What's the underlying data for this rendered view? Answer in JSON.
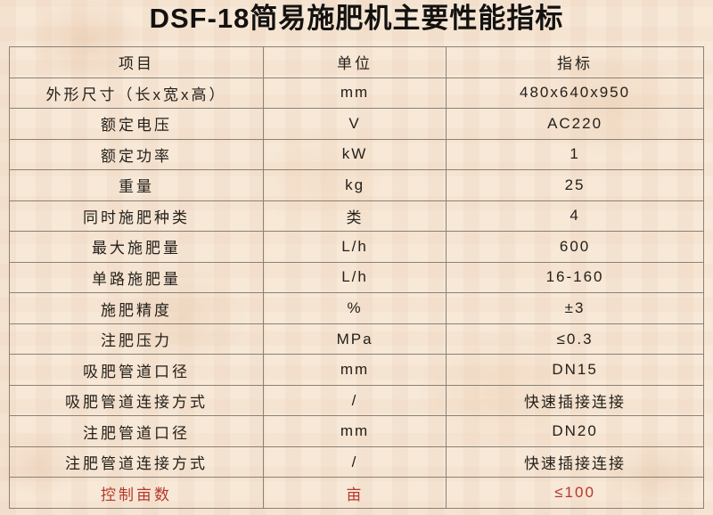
{
  "page": {
    "title": "DSF-18简易施肥机主要性能指标"
  },
  "colors": {
    "background": "#f7e8d7",
    "table_border": "#8a8174",
    "text": "#24201b",
    "highlight_text": "#b5372c"
  },
  "table": {
    "headers": [
      "项目",
      "单位",
      "指标"
    ],
    "rows": [
      {
        "item": "外形尺寸（长x宽x高）",
        "unit": "mm",
        "value": "480x640x950",
        "highlight": false
      },
      {
        "item": "额定电压",
        "unit": "V",
        "value": "AC220",
        "highlight": false
      },
      {
        "item": "额定功率",
        "unit": "kW",
        "value": "1",
        "highlight": false
      },
      {
        "item": "重量",
        "unit": "kg",
        "value": "25",
        "highlight": false
      },
      {
        "item": "同时施肥种类",
        "unit": "类",
        "value": "4",
        "highlight": false
      },
      {
        "item": "最大施肥量",
        "unit": "L/h",
        "value": "600",
        "highlight": false
      },
      {
        "item": "单路施肥量",
        "unit": "L/h",
        "value": "16-160",
        "highlight": false
      },
      {
        "item": "施肥精度",
        "unit": "%",
        "value": "±3",
        "highlight": false
      },
      {
        "item": "注肥压力",
        "unit": "MPa",
        "value": "≤0.3",
        "highlight": false
      },
      {
        "item": "吸肥管道口径",
        "unit": "mm",
        "value": "DN15",
        "highlight": false
      },
      {
        "item": "吸肥管道连接方式",
        "unit": "/",
        "value": "快速插接连接",
        "highlight": false
      },
      {
        "item": "注肥管道口径",
        "unit": "mm",
        "value": "DN20",
        "highlight": false
      },
      {
        "item": "注肥管道连接方式",
        "unit": "/",
        "value": "快速插接连接",
        "highlight": false
      },
      {
        "item": "控制亩数",
        "unit": "亩",
        "value": "≤100",
        "highlight": true
      }
    ]
  },
  "chart_data": {
    "type": "table",
    "title": "DSF-18简易施肥机主要性能指标",
    "columns": [
      "项目",
      "单位",
      "指标"
    ],
    "rows": [
      [
        "外形尺寸（长x宽x高）",
        "mm",
        "480x640x950"
      ],
      [
        "额定电压",
        "V",
        "AC220"
      ],
      [
        "额定功率",
        "kW",
        "1"
      ],
      [
        "重量",
        "kg",
        "25"
      ],
      [
        "同时施肥种类",
        "类",
        "4"
      ],
      [
        "最大施肥量",
        "L/h",
        "600"
      ],
      [
        "单路施肥量",
        "L/h",
        "16-160"
      ],
      [
        "施肥精度",
        "%",
        "±3"
      ],
      [
        "注肥压力",
        "MPa",
        "≤0.3"
      ],
      [
        "吸肥管道口径",
        "mm",
        "DN15"
      ],
      [
        "吸肥管道连接方式",
        "/",
        "快速插接连接"
      ],
      [
        "注肥管道口径",
        "mm",
        "DN20"
      ],
      [
        "注肥管道连接方式",
        "/",
        "快速插接连接"
      ],
      [
        "控制亩数",
        "亩",
        "≤100"
      ]
    ]
  }
}
